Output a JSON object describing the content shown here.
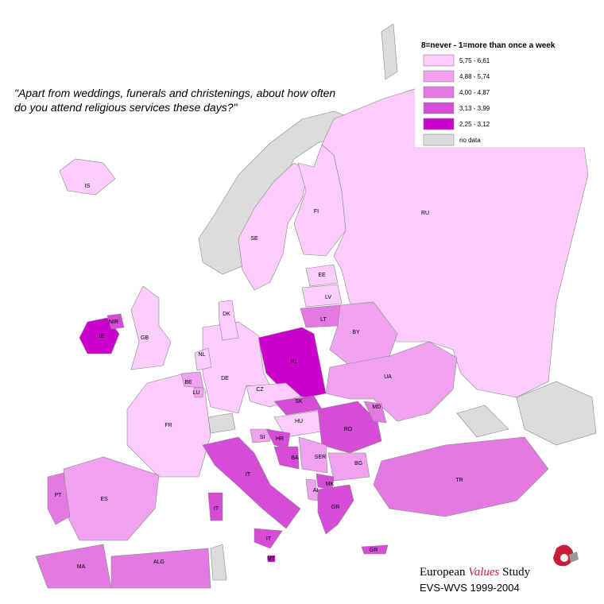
{
  "question": [
    "\"Apart from weddings, funerals and christenings, about how often",
    "do you attend religious services these days?\""
  ],
  "legend": {
    "title": "8=never - 1=more than once a week",
    "items": [
      {
        "label": "5,75 - 6,61",
        "color": "#fccdfc"
      },
      {
        "label": "4,88 - 5,74",
        "color": "#f0a2f0"
      },
      {
        "label": "4,00 - 4,87",
        "color": "#e27ae2"
      },
      {
        "label": "3,13 - 3,99",
        "color": "#d64cd6"
      },
      {
        "label": "2,25 - 3,12",
        "color": "#cc00cc"
      },
      {
        "label": "no data",
        "color": "#dcdcdc"
      }
    ]
  },
  "countries": [
    {
      "label": "IS",
      "color": "#fccdfc"
    },
    {
      "label": "SE",
      "color": "#fccdfc"
    },
    {
      "label": "FI",
      "color": "#fccdfc"
    },
    {
      "label": "RU",
      "color": "#fccdfc"
    },
    {
      "label": "EE",
      "color": "#fccdfc"
    },
    {
      "label": "LV",
      "color": "#fccdfc"
    },
    {
      "label": "LT",
      "color": "#e27ae2"
    },
    {
      "label": "BY",
      "color": "#f0a2f0"
    },
    {
      "label": "UA",
      "color": "#f0a2f0"
    },
    {
      "label": "PL",
      "color": "#cc00cc"
    },
    {
      "label": "DE",
      "color": "#fccdfc"
    },
    {
      "label": "CZ",
      "color": "#fccdfc"
    },
    {
      "label": "SK",
      "color": "#d64cd6"
    },
    {
      "label": "HU",
      "color": "#fccdfc"
    },
    {
      "label": "RO",
      "color": "#d64cd6"
    },
    {
      "label": "MD",
      "color": "#e27ae2"
    },
    {
      "label": "FR",
      "color": "#fccdfc"
    },
    {
      "label": "BE",
      "color": "#f0a2f0"
    },
    {
      "label": "LU",
      "color": "#f0a2f0"
    },
    {
      "label": "NL",
      "color": "#fccdfc"
    },
    {
      "label": "GB",
      "color": "#fccdfc"
    },
    {
      "label": "IE",
      "color": "#cc00cc"
    },
    {
      "label": "NIR",
      "color": "#d64cd6"
    },
    {
      "label": "DK",
      "color": "#fccdfc"
    },
    {
      "label": "ES",
      "color": "#f0a2f0"
    },
    {
      "label": "PT",
      "color": "#e27ae2"
    },
    {
      "label": "IT",
      "color": "#d64cd6"
    },
    {
      "label": "MT",
      "color": "#cc00cc"
    },
    {
      "label": "SI",
      "color": "#f0a2f0"
    },
    {
      "label": "HR",
      "color": "#d64cd6"
    },
    {
      "label": "BA",
      "color": "#d64cd6"
    },
    {
      "label": "SER",
      "color": "#f0a2f0"
    },
    {
      "label": "BG",
      "color": "#f0a2f0"
    },
    {
      "label": "MK",
      "color": "#d64cd6"
    },
    {
      "label": "AL",
      "color": "#f0a2f0"
    },
    {
      "label": "GR",
      "color": "#d64cd6"
    },
    {
      "label": "TR",
      "color": "#e27ae2"
    },
    {
      "label": "MA",
      "color": "#e27ae2"
    },
    {
      "label": "ALG",
      "color": "#e27ae2"
    }
  ],
  "footer": {
    "brand": [
      "European",
      "Values",
      "Study"
    ],
    "source": "EVS-WVS 1999-2004"
  }
}
